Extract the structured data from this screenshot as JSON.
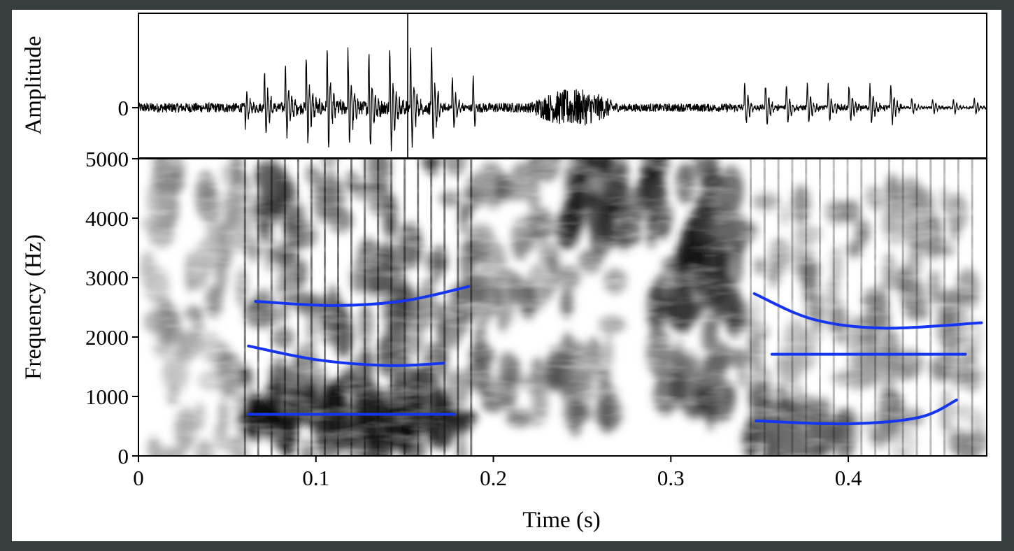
{
  "chart_data": [
    {
      "type": "line",
      "panel": "waveform",
      "ylabel": "Amplitude",
      "yticks": [
        {
          "value": 0,
          "label": "0"
        }
      ],
      "ylim": [
        -1,
        1
      ],
      "xlim": [
        0,
        0.478
      ],
      "series": [
        {
          "color": "#000000"
        }
      ]
    },
    {
      "type": "heatmap",
      "panel": "spectrogram",
      "xlabel": "Time (s)",
      "ylabel": "Frequency (Hz)",
      "xlim": [
        0,
        0.478
      ],
      "ylim": [
        0,
        5000
      ],
      "xticks": [
        {
          "value": 0,
          "label": "0"
        },
        {
          "value": 0.1,
          "label": "0.1"
        },
        {
          "value": 0.2,
          "label": "0.2"
        },
        {
          "value": 0.3,
          "label": "0.3"
        },
        {
          "value": 0.4,
          "label": "0.4"
        }
      ],
      "yticks": [
        {
          "value": 0,
          "label": "0"
        },
        {
          "value": 1000,
          "label": "1000"
        },
        {
          "value": 2000,
          "label": "2000"
        },
        {
          "value": 3000,
          "label": "3000"
        },
        {
          "value": 4000,
          "label": "4000"
        },
        {
          "value": 5000,
          "label": "5000"
        }
      ],
      "formant_color": "#1535f0",
      "formants": [
        {
          "segment": 1,
          "points": [
            [
              0.066,
              2600
            ],
            [
              0.11,
              2530
            ],
            [
              0.15,
              2610
            ],
            [
              0.186,
              2850
            ]
          ]
        },
        {
          "segment": 1,
          "points": [
            [
              0.062,
              1850
            ],
            [
              0.1,
              1620
            ],
            [
              0.14,
              1520
            ],
            [
              0.172,
              1560
            ]
          ]
        },
        {
          "segment": 1,
          "points": [
            [
              0.062,
              700
            ],
            [
              0.178,
              700
            ]
          ]
        },
        {
          "segment": 2,
          "points": [
            [
              0.347,
              2730
            ],
            [
              0.38,
              2300
            ],
            [
              0.42,
              2150
            ],
            [
              0.475,
              2240
            ]
          ]
        },
        {
          "segment": 2,
          "points": [
            [
              0.357,
              1710
            ],
            [
              0.466,
              1710
            ]
          ]
        },
        {
          "segment": 2,
          "points": [
            [
              0.348,
              590
            ],
            [
              0.4,
              540
            ],
            [
              0.44,
              650
            ],
            [
              0.461,
              940
            ]
          ]
        }
      ]
    }
  ]
}
